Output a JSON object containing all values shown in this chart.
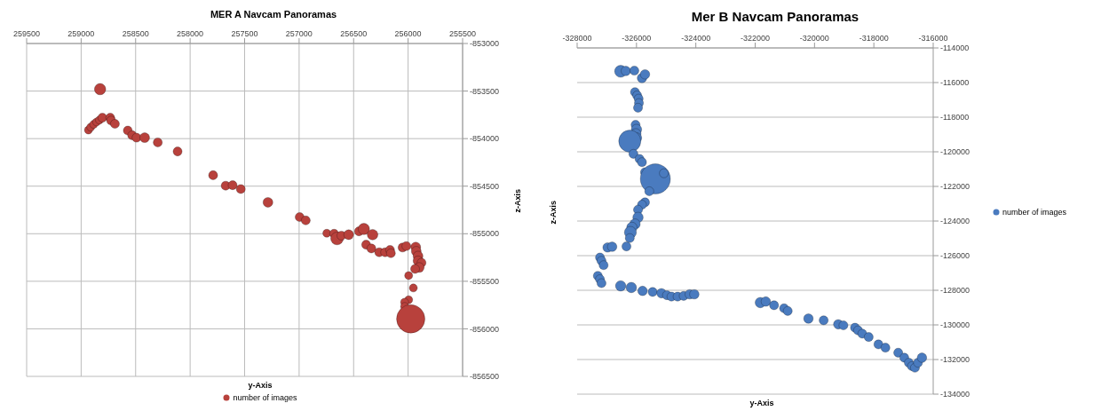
{
  "chart_data": [
    {
      "type": "bubble",
      "title": "MER A Navcam Panoramas",
      "xlabel": "y-Axis",
      "ylabel": "z-Axis",
      "xlim": [
        259500,
        255500
      ],
      "xticks": [
        259500,
        259000,
        258500,
        258000,
        257500,
        257000,
        256500,
        256000,
        255500
      ],
      "ylim": [
        -856500,
        -853000
      ],
      "yticks": [
        -856500,
        -856000,
        -855500,
        -855000,
        -854500,
        -854000,
        -853500,
        -853000
      ],
      "grid": true,
      "legend": "bottom",
      "series": [
        {
          "name": "number of images",
          "color": "#b8413c",
          "x": [
            258826,
            258933,
            258912,
            258885,
            258858,
            258832,
            258805,
            258733,
            258725,
            258690,
            258572,
            258532,
            258492,
            258417,
            258297,
            258115,
            257789,
            257674,
            257610,
            257535,
            257286,
            256995,
            256939,
            256746,
            256679,
            256652,
            256612,
            256545,
            256451,
            256406,
            256326,
            256385,
            256337,
            256265,
            256211,
            256166,
            256158,
            256051,
            256016,
            255930,
            255925,
            255909,
            255909,
            255877,
            255898,
            255936,
            255995,
            255952,
            255995,
            256032,
            256032,
            255976
          ],
          "values": [
            -853480,
            -853910,
            -853880,
            -853850,
            -853825,
            -853805,
            -853780,
            -853780,
            -853810,
            -853845,
            -853915,
            -853965,
            -853990,
            -853990,
            -854040,
            -854135,
            -854385,
            -854495,
            -854490,
            -854530,
            -854670,
            -854825,
            -854860,
            -854995,
            -855000,
            -855050,
            -855020,
            -855010,
            -854975,
            -854950,
            -855010,
            -855115,
            -855155,
            -855195,
            -855195,
            -855170,
            -855205,
            -855145,
            -855130,
            -855140,
            -855185,
            -855235,
            -855285,
            -855305,
            -855355,
            -855370,
            -855440,
            -855570,
            -855695,
            -855720,
            -855765,
            -855895
          ],
          "sizes": [
            0.16,
            0.08,
            0.08,
            0.08,
            0.08,
            0.08,
            0.1,
            0.1,
            0.1,
            0.1,
            0.1,
            0.1,
            0.1,
            0.12,
            0.1,
            0.1,
            0.1,
            0.1,
            0.1,
            0.1,
            0.12,
            0.1,
            0.1,
            0.08,
            0.1,
            0.2,
            0.1,
            0.12,
            0.1,
            0.16,
            0.14,
            0.1,
            0.1,
            0.1,
            0.1,
            0.1,
            0.1,
            0.1,
            0.1,
            0.12,
            0.12,
            0.12,
            0.12,
            0.1,
            0.12,
            0.1,
            0.08,
            0.08,
            0.08,
            0.08,
            0.08,
            1
          ]
        }
      ]
    },
    {
      "type": "bubble",
      "title": "Mer B Navcam Panoramas",
      "xlabel": "y-Axis",
      "ylabel": "z-Axis",
      "xlim": [
        -328000,
        -316000
      ],
      "xticks": [
        -328000,
        -326000,
        -324000,
        -322000,
        -320000,
        -318000,
        -316000
      ],
      "ylim": [
        -134000,
        -114000
      ],
      "yticks": [
        -134000,
        -132000,
        -130000,
        -128000,
        -126000,
        -124000,
        -122000,
        -120000,
        -118000,
        -116000,
        -114000
      ],
      "grid": "y",
      "legend": "right",
      "series": [
        {
          "name": "number of images",
          "color": "#4a7bbf",
          "x": [
            -326533,
            -326359,
            -326072,
            -325815,
            -325713,
            -326051,
            -325979,
            -325928,
            -325918,
            -325949,
            -326031,
            -326000,
            -326021,
            -326000,
            -326226,
            -326103,
            -325897,
            -325815,
            -325713,
            -325364,
            -325077,
            -325569,
            -325713,
            -325815,
            -325949,
            -325949,
            -326051,
            -326154,
            -326205,
            -326226,
            -326338,
            -326974,
            -326821,
            -327231,
            -327179,
            -327108,
            -327303,
            -327231,
            -327179,
            -326533,
            -326174,
            -325795,
            -325456,
            -325159,
            -324974,
            -324821,
            -324615,
            -324410,
            -324205,
            -324051,
            -321826,
            -321641,
            -321364,
            -321026,
            -320903,
            -320205,
            -319692,
            -319200,
            -319026,
            -318636,
            -318533,
            -318390,
            -318174,
            -317846,
            -317610,
            -317179,
            -316974,
            -316821,
            -316718,
            -316615,
            -316513,
            -316379
          ],
          "values": [
            -115350,
            -115330,
            -115310,
            -115740,
            -115525,
            -116550,
            -116740,
            -116930,
            -117185,
            -117455,
            -118440,
            -118710,
            -118960,
            -119195,
            -119385,
            -120120,
            -120410,
            -120600,
            -121180,
            -121565,
            -121240,
            -122280,
            -122920,
            -123055,
            -123345,
            -123790,
            -124175,
            -124365,
            -124655,
            -124985,
            -125465,
            -125525,
            -125485,
            -126105,
            -126295,
            -126550,
            -127165,
            -127360,
            -127590,
            -127745,
            -127840,
            -128035,
            -128095,
            -128170,
            -128285,
            -128365,
            -128365,
            -128325,
            -128230,
            -128230,
            -128710,
            -128650,
            -128865,
            -129040,
            -129195,
            -129635,
            -129735,
            -129965,
            -130025,
            -130160,
            -130315,
            -130505,
            -130700,
            -131125,
            -131315,
            -131605,
            -131895,
            -132185,
            -132380,
            -132475,
            -132185,
            -131895
          ],
          "sizes": [
            0.16,
            0.1,
            0.09,
            0.1,
            0.1,
            0.09,
            0.09,
            0.09,
            0.09,
            0.09,
            0.09,
            0.12,
            0.12,
            0.12,
            0.54,
            0.09,
            0.09,
            0.09,
            0.09,
            1,
            0.09,
            0.09,
            0.09,
            0.09,
            0.09,
            0.12,
            0.12,
            0.12,
            0.16,
            0.09,
            0.09,
            0.1,
            0.1,
            0.09,
            0.09,
            0.09,
            0.09,
            0.09,
            0.09,
            0.12,
            0.12,
            0.1,
            0.09,
            0.1,
            0.09,
            0.09,
            0.09,
            0.09,
            0.1,
            0.1,
            0.12,
            0.1,
            0.09,
            0.09,
            0.09,
            0.1,
            0.09,
            0.1,
            0.09,
            0.09,
            0.09,
            0.09,
            0.09,
            0.09,
            0.09,
            0.09,
            0.09,
            0.09,
            0.09,
            0.09,
            0.09,
            0.1
          ]
        }
      ]
    }
  ]
}
